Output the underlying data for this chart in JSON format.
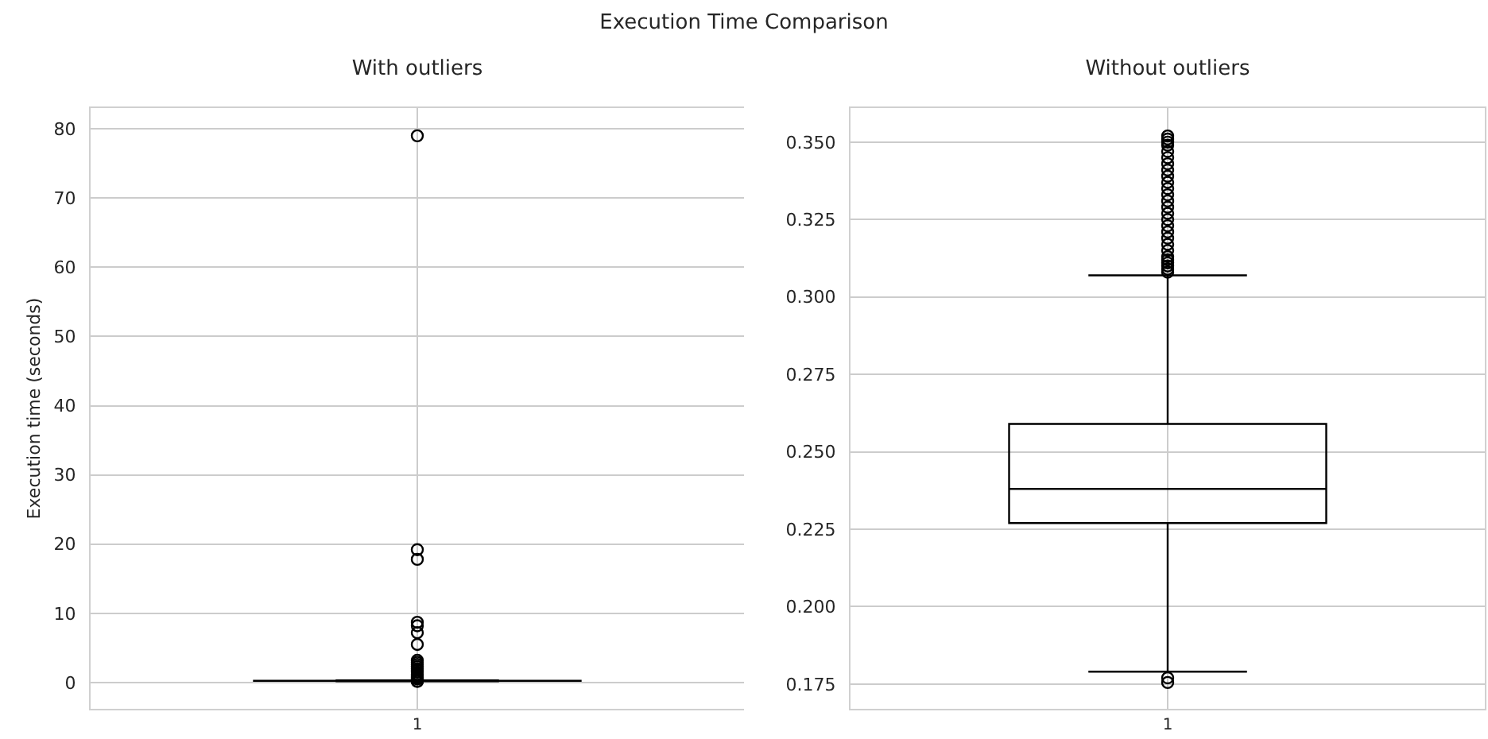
{
  "chart_data": [
    {
      "type": "box",
      "title": "With outliers",
      "ylabel": "Execution time (seconds)",
      "annotations": [
        "Execution Time Comparison"
      ],
      "categories": [
        "1"
      ],
      "series": [
        {
          "color": "#000000",
          "boxes": [
            {
              "low": 0.179,
              "q1": 0.227,
              "median": 0.238,
              "q3": 0.259,
              "high": 0.307,
              "outliers": [
                0.176,
                0.178,
                0.5,
                0.6,
                0.8,
                1.0,
                1.2,
                1.5,
                1.8,
                2.0,
                2.3,
                2.6,
                2.9,
                3.2,
                5.5,
                7.2,
                8.2,
                8.7,
                17.8,
                19.2,
                79
              ]
            }
          ]
        }
      ],
      "ylim": [
        -3.8,
        83
      ],
      "yticks": [
        0,
        10,
        20,
        30,
        40,
        50,
        60,
        70,
        80
      ],
      "grid": true,
      "marker": "circle"
    },
    {
      "type": "box",
      "title": "Without outliers",
      "categories": [
        "1"
      ],
      "series": [
        {
          "color": "#000000",
          "boxes": [
            {
              "low": 0.179,
              "q1": 0.227,
              "median": 0.238,
              "q3": 0.259,
              "high": 0.307,
              "outliers": [
                0.1755,
                0.177,
                0.308,
                0.309,
                0.31,
                0.311,
                0.312,
                0.313,
                0.315,
                0.317,
                0.319,
                0.321,
                0.323,
                0.325,
                0.327,
                0.329,
                0.331,
                0.333,
                0.335,
                0.337,
                0.339,
                0.341,
                0.343,
                0.345,
                0.347,
                0.349,
                0.35,
                0.351,
                0.352
              ]
            }
          ]
        }
      ],
      "ylim": [
        0.167,
        0.361
      ],
      "yticks": [
        {
          "value": 0.175,
          "label": "0.175"
        },
        {
          "value": 0.2,
          "label": "0.200"
        },
        {
          "value": 0.225,
          "label": "0.225"
        },
        {
          "value": 0.25,
          "label": "0.250"
        },
        {
          "value": 0.275,
          "label": "0.275"
        },
        {
          "value": 0.3,
          "label": "0.300"
        },
        {
          "value": 0.325,
          "label": "0.325"
        },
        {
          "value": 0.35,
          "label": "0.350"
        }
      ],
      "grid": true,
      "marker": "circle"
    }
  ]
}
